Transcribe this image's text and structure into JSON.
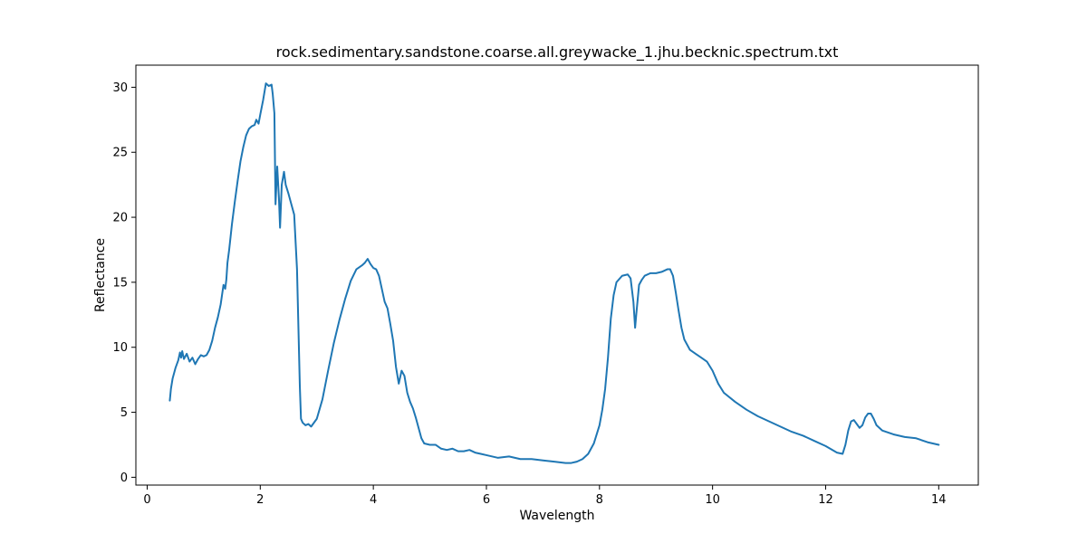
{
  "chart_data": {
    "type": "line",
    "title": "rock.sedimentary.sandstone.coarse.all.greywacke_1.jhu.becknic.spectrum.txt",
    "xlabel": "Wavelength",
    "ylabel": "Reflectance",
    "xlim": [
      -0.2,
      14.7
    ],
    "ylim": [
      -0.6,
      31.7
    ],
    "grid": false,
    "xticks": [
      0,
      2,
      4,
      6,
      8,
      10,
      12,
      14
    ],
    "yticks": [
      0,
      5,
      10,
      15,
      20,
      25,
      30
    ],
    "colors": {
      "line": "#1f77b4"
    },
    "series": [
      {
        "x": [
          0.4,
          0.42,
          0.45,
          0.5,
          0.55,
          0.58,
          0.6,
          0.62,
          0.65,
          0.7,
          0.75,
          0.8,
          0.85,
          0.9,
          0.95,
          1.0,
          1.05,
          1.1,
          1.15,
          1.2,
          1.25,
          1.3,
          1.35,
          1.38,
          1.4,
          1.42,
          1.45,
          1.5,
          1.55,
          1.6,
          1.65,
          1.7,
          1.75,
          1.8,
          1.85,
          1.9,
          1.93,
          1.97,
          2.0,
          2.05,
          2.1,
          2.15,
          2.2,
          2.22,
          2.25,
          2.27,
          2.3,
          2.33,
          2.35,
          2.38,
          2.42,
          2.45,
          2.5,
          2.55,
          2.6,
          2.65,
          2.7,
          2.72,
          2.75,
          2.8,
          2.85,
          2.9,
          3.0,
          3.1,
          3.2,
          3.3,
          3.4,
          3.5,
          3.6,
          3.7,
          3.8,
          3.85,
          3.9,
          3.95,
          4.0,
          4.05,
          4.1,
          4.15,
          4.2,
          4.25,
          4.3,
          4.35,
          4.4,
          4.45,
          4.5,
          4.55,
          4.6,
          4.65,
          4.7,
          4.75,
          4.8,
          4.85,
          4.9,
          5.0,
          5.1,
          5.2,
          5.3,
          5.4,
          5.5,
          5.6,
          5.7,
          5.8,
          5.9,
          6.0,
          6.2,
          6.4,
          6.6,
          6.8,
          7.0,
          7.2,
          7.4,
          7.5,
          7.6,
          7.7,
          7.8,
          7.9,
          8.0,
          8.05,
          8.1,
          8.15,
          8.2,
          8.25,
          8.3,
          8.4,
          8.5,
          8.55,
          8.6,
          8.63,
          8.65,
          8.7,
          8.75,
          8.8,
          8.9,
          9.0,
          9.1,
          9.2,
          9.25,
          9.3,
          9.35,
          9.4,
          9.45,
          9.5,
          9.6,
          9.7,
          9.8,
          9.9,
          10.0,
          10.1,
          10.2,
          10.4,
          10.6,
          10.8,
          11.0,
          11.2,
          11.4,
          11.6,
          11.8,
          12.0,
          12.2,
          12.3,
          12.35,
          12.4,
          12.45,
          12.5,
          12.55,
          12.6,
          12.65,
          12.7,
          12.75,
          12.8,
          12.85,
          12.9,
          13.0,
          13.2,
          13.4,
          13.6,
          13.8,
          14.0
        ],
        "y": [
          5.9,
          6.8,
          7.6,
          8.4,
          9.0,
          9.6,
          9.2,
          9.7,
          9.1,
          9.5,
          8.9,
          9.2,
          8.7,
          9.1,
          9.4,
          9.3,
          9.4,
          9.8,
          10.5,
          11.5,
          12.3,
          13.3,
          14.8,
          14.5,
          15.2,
          16.5,
          17.5,
          19.5,
          21.2,
          22.8,
          24.3,
          25.4,
          26.3,
          26.8,
          27.0,
          27.1,
          27.5,
          27.2,
          27.9,
          29.0,
          30.3,
          30.1,
          30.2,
          29.5,
          28.0,
          21.0,
          23.9,
          21.5,
          19.2,
          22.5,
          23.5,
          22.5,
          21.8,
          21.0,
          20.2,
          16.0,
          7.0,
          4.5,
          4.2,
          4.0,
          4.1,
          3.9,
          4.5,
          6.0,
          8.2,
          10.3,
          12.1,
          13.7,
          15.1,
          16.0,
          16.3,
          16.5,
          16.8,
          16.4,
          16.1,
          16.0,
          15.5,
          14.5,
          13.5,
          13.0,
          11.8,
          10.5,
          8.5,
          7.2,
          8.2,
          7.8,
          6.5,
          5.8,
          5.3,
          4.6,
          3.8,
          3.0,
          2.6,
          2.5,
          2.5,
          2.2,
          2.1,
          2.2,
          2.0,
          2.0,
          2.1,
          1.9,
          1.8,
          1.7,
          1.5,
          1.6,
          1.4,
          1.4,
          1.3,
          1.2,
          1.1,
          1.1,
          1.2,
          1.4,
          1.8,
          2.6,
          4.0,
          5.2,
          6.8,
          9.2,
          12.2,
          14.0,
          15.0,
          15.5,
          15.6,
          15.3,
          13.5,
          11.5,
          12.5,
          14.8,
          15.2,
          15.5,
          15.7,
          15.7,
          15.8,
          16.0,
          16.0,
          15.5,
          14.2,
          12.8,
          11.5,
          10.6,
          9.8,
          9.5,
          9.2,
          8.9,
          8.2,
          7.2,
          6.5,
          5.8,
          5.2,
          4.7,
          4.3,
          3.9,
          3.5,
          3.2,
          2.8,
          2.4,
          1.9,
          1.8,
          2.5,
          3.6,
          4.3,
          4.4,
          4.1,
          3.8,
          4.0,
          4.6,
          4.9,
          4.9,
          4.5,
          4.0,
          3.6,
          3.3,
          3.1,
          3.0,
          2.7,
          2.5
        ]
      }
    ]
  }
}
